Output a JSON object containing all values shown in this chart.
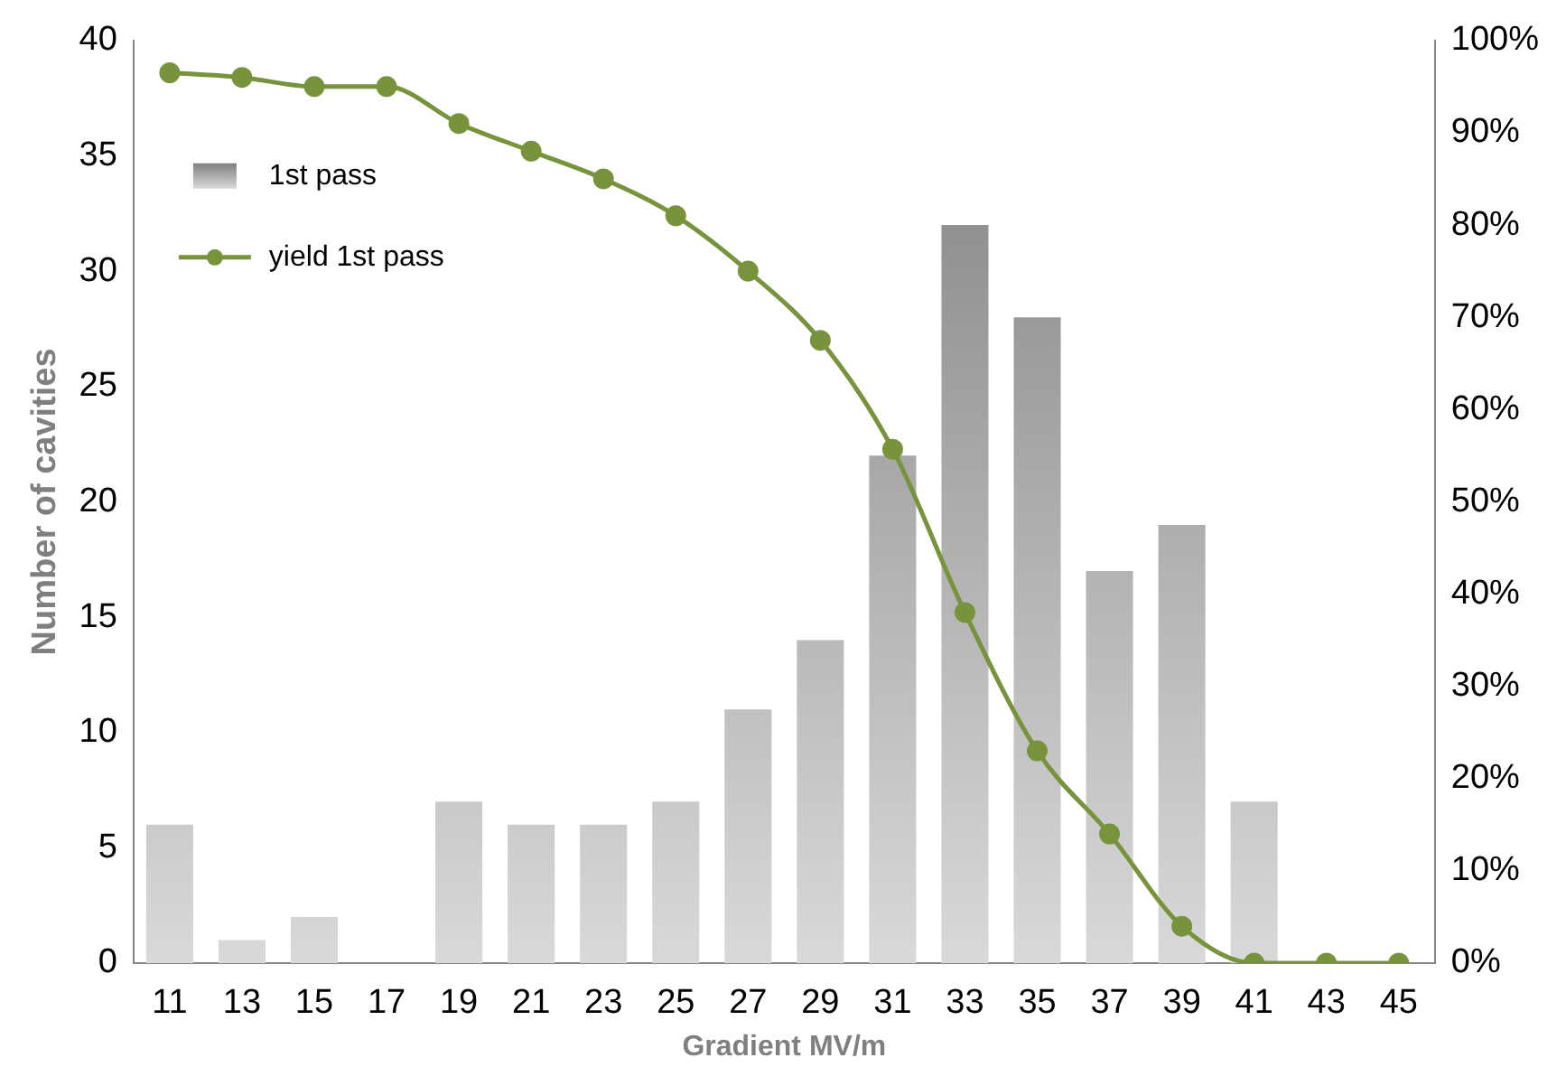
{
  "chart_data": {
    "type": "bar",
    "xlabel": "Gradient MV/m",
    "ylabel": "Number of cavities",
    "categories": [
      "11",
      "13",
      "15",
      "17",
      "19",
      "21",
      "23",
      "25",
      "27",
      "29",
      "31",
      "33",
      "35",
      "37",
      "39",
      "41",
      "43",
      "45"
    ],
    "series": [
      {
        "name": "1st pass",
        "color": "#7f7f7f",
        "values": [
          6,
          1,
          2,
          0,
          7,
          6,
          6,
          7,
          11,
          14,
          22,
          32,
          28,
          17,
          19,
          7,
          0,
          0
        ]
      },
      {
        "name": "yield 1st pass",
        "type": "line",
        "axis": "y2",
        "color": "#77933c",
        "marker": "circle",
        "values": [
          96.5,
          96,
          95,
          95,
          91,
          88,
          85,
          81,
          75,
          67.5,
          55.7,
          38,
          23,
          14,
          4,
          0,
          0,
          0
        ]
      }
    ],
    "ylim": [
      0,
      40
    ],
    "yticks": [
      0,
      5,
      10,
      15,
      20,
      25,
      30,
      35,
      40
    ],
    "y2lim": [
      0,
      100
    ],
    "y2ticks": [
      {
        "value": 0,
        "label": "0%"
      },
      {
        "value": 10,
        "label": "10%"
      },
      {
        "value": 20,
        "label": "20%"
      },
      {
        "value": 30,
        "label": "30%"
      },
      {
        "value": 40,
        "label": "40%"
      },
      {
        "value": 50,
        "label": "50%"
      },
      {
        "value": 60,
        "label": "60%"
      },
      {
        "value": 70,
        "label": "70%"
      },
      {
        "value": 80,
        "label": "80%"
      },
      {
        "value": 90,
        "label": "90%"
      },
      {
        "value": 100,
        "label": "100%"
      }
    ],
    "grid": false,
    "legend": "top left"
  }
}
